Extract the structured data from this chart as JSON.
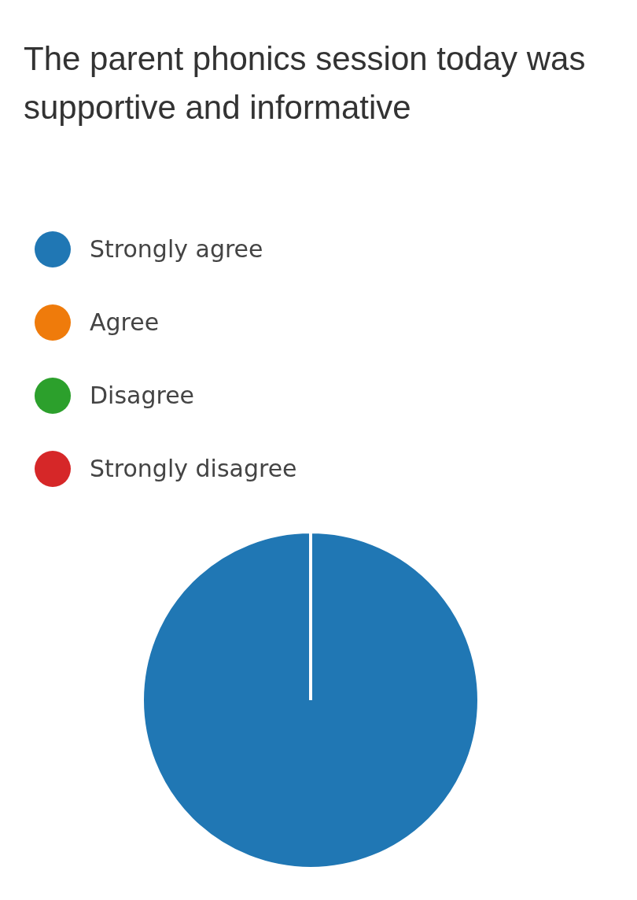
{
  "chart_data": {
    "type": "pie",
    "title": "The parent phonics session today was supportive and informative",
    "categories": [
      "Strongly agree",
      "Agree",
      "Disagree",
      "Strongly disagree"
    ],
    "values": [
      100,
      0,
      0,
      0
    ],
    "colors": [
      "#2077b4",
      "#ef7b0b",
      "#2ca02c",
      "#d62728"
    ],
    "legend": "top left"
  }
}
